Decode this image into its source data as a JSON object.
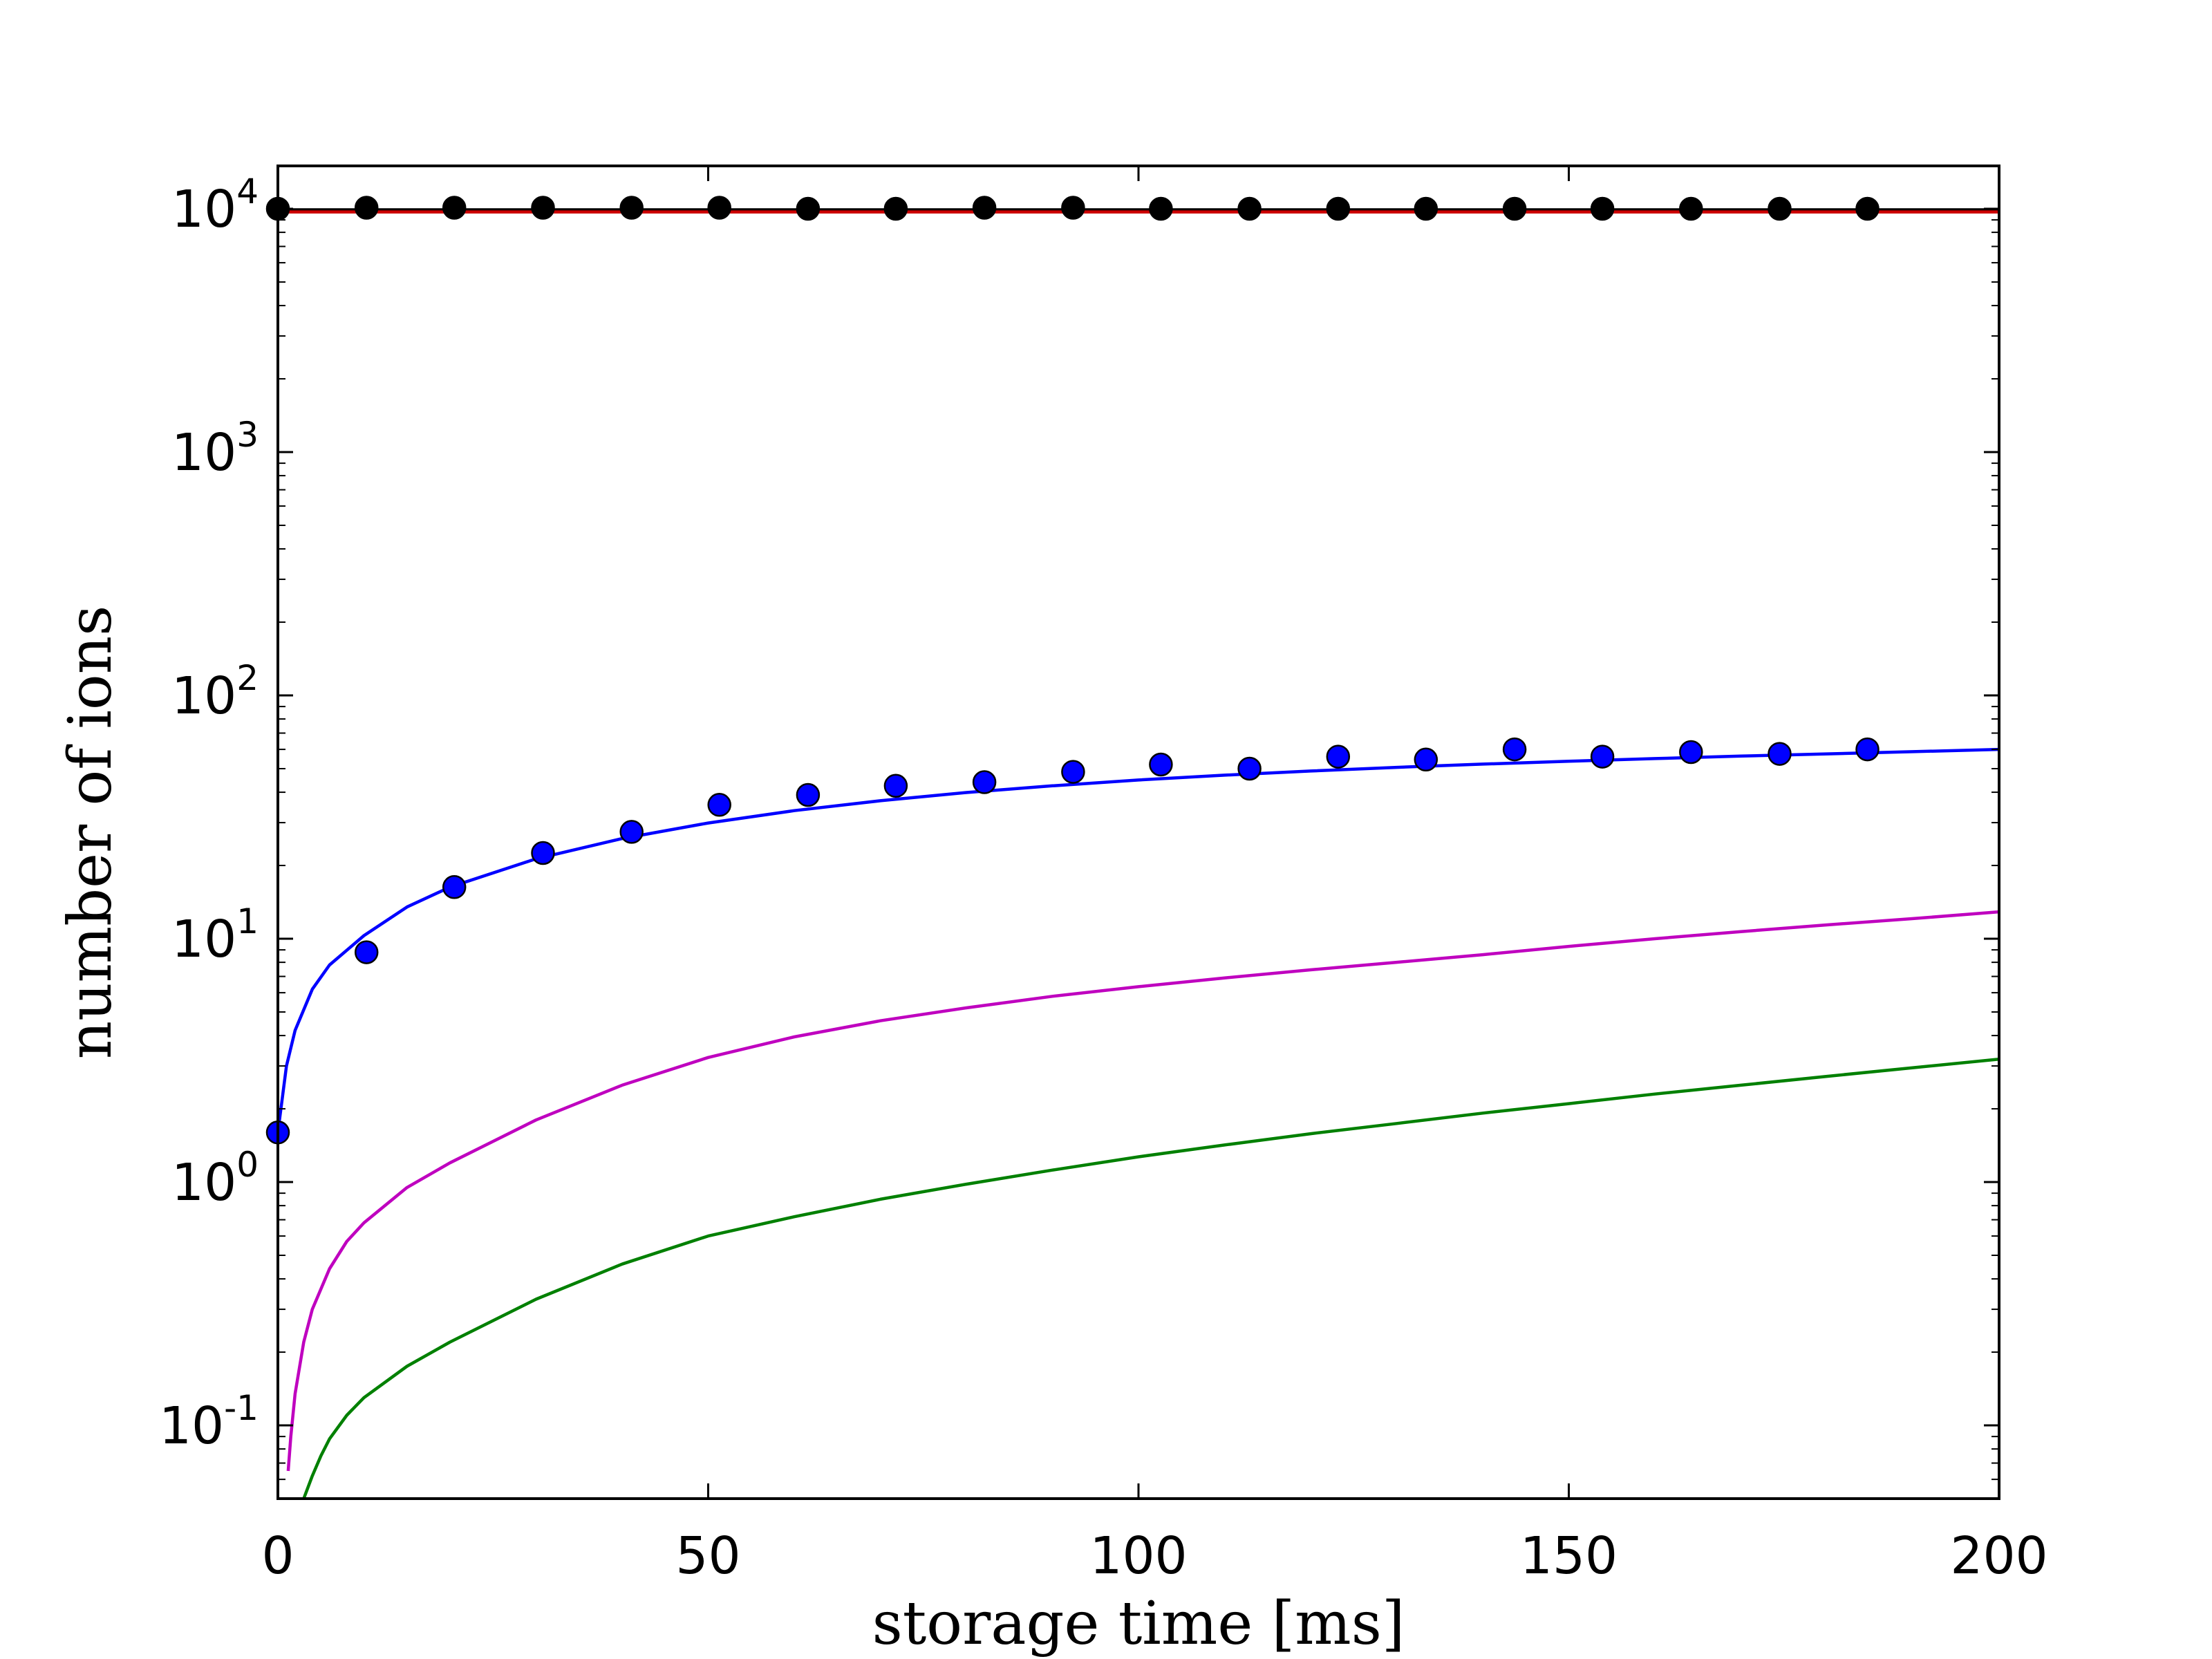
{
  "chart_data": {
    "type": "line",
    "xlabel": "storage time [ms]",
    "ylabel": "number of ions",
    "xlim": [
      0,
      200
    ],
    "ylim": [
      0.05,
      15000
    ],
    "yscale": "log",
    "grid": false,
    "legend": "none",
    "x_ticks": [
      {
        "value": 0,
        "label": "0"
      },
      {
        "value": 50,
        "label": "50"
      },
      {
        "value": 100,
        "label": "100"
      },
      {
        "value": 150,
        "label": "150"
      },
      {
        "value": 200,
        "label": "200"
      }
    ],
    "y_ticks": [
      {
        "value": 0.1,
        "base": "10",
        "exp": "-1"
      },
      {
        "value": 1,
        "base": "10",
        "exp": "0"
      },
      {
        "value": 10,
        "base": "10",
        "exp": "1"
      },
      {
        "value": 100,
        "base": "10",
        "exp": "2"
      },
      {
        "value": 1000,
        "base": "10",
        "exp": "3"
      },
      {
        "value": 10000,
        "base": "10",
        "exp": "4"
      }
    ],
    "scatter_series": [
      {
        "color": "#000000",
        "x": [
          0,
          10.3,
          20.5,
          30.8,
          41.1,
          51.3,
          61.6,
          71.8,
          82.1,
          92.4,
          102.6,
          112.9,
          123.2,
          133.4,
          143.7,
          153.9,
          164.2,
          174.5,
          184.7
        ],
        "y": [
          10000,
          10100,
          10100,
          10100,
          10100,
          10100,
          10000,
          10000,
          10100,
          10100,
          10000,
          10000,
          10000,
          10000,
          10000,
          10000,
          10000,
          10000,
          10000
        ]
      },
      {
        "color": "#0000ff",
        "x": [
          0,
          10.3,
          20.5,
          30.8,
          41.1,
          51.3,
          61.6,
          71.8,
          82.1,
          92.4,
          102.6,
          112.9,
          123.2,
          133.4,
          143.7,
          153.9,
          164.2,
          174.5,
          184.7
        ],
        "y": [
          1.6,
          8.8,
          16.3,
          22.5,
          27.5,
          35.5,
          39,
          42.5,
          44,
          48.5,
          52,
          50,
          56,
          54.5,
          60,
          56,
          58.5,
          57.5,
          60
        ]
      }
    ],
    "line_series": [
      {
        "color": "#000000",
        "x": [
          0,
          200
        ],
        "y": [
          9900,
          9900
        ]
      },
      {
        "color": "#cc0000",
        "x": [
          0,
          200
        ],
        "y": [
          9700,
          9700
        ]
      },
      {
        "color": "#0000ff",
        "x": [
          0,
          1,
          2,
          4,
          6,
          10,
          15,
          20,
          30,
          40,
          50,
          60,
          70,
          80,
          90,
          100,
          110,
          120,
          130,
          140,
          150,
          160,
          170,
          180,
          190,
          200
        ],
        "y": [
          1.6,
          3.0,
          4.2,
          6.2,
          7.8,
          10.3,
          13.5,
          16.3,
          21.3,
          25.8,
          29.9,
          33.6,
          36.9,
          39.9,
          42.5,
          44.9,
          47.0,
          48.9,
          50.6,
          52.2,
          53.6,
          55.0,
          56.3,
          57.5,
          58.7,
          60.0
        ]
      },
      {
        "color": "#bf00bf",
        "x": [
          1.2,
          1.5,
          2,
          3,
          4,
          6,
          8,
          10,
          15,
          20,
          30,
          40,
          50,
          60,
          70,
          80,
          90,
          100,
          110,
          120,
          130,
          140,
          150,
          160,
          170,
          180,
          190,
          200
        ],
        "y": [
          0.065,
          0.09,
          0.135,
          0.22,
          0.3,
          0.44,
          0.57,
          0.68,
          0.95,
          1.2,
          1.8,
          2.5,
          3.25,
          3.95,
          4.6,
          5.2,
          5.8,
          6.35,
          6.9,
          7.45,
          8.0,
          8.6,
          9.3,
          10.0,
          10.7,
          11.4,
          12.1,
          12.9
        ]
      },
      {
        "color": "#008000",
        "x": [
          3,
          4,
          5,
          6,
          8,
          10,
          15,
          20,
          30,
          40,
          50,
          60,
          70,
          80,
          90,
          100,
          110,
          120,
          130,
          140,
          150,
          160,
          170,
          180,
          190,
          200
        ],
        "y": [
          0.05,
          0.062,
          0.075,
          0.088,
          0.11,
          0.13,
          0.175,
          0.22,
          0.33,
          0.46,
          0.6,
          0.72,
          0.85,
          0.98,
          1.12,
          1.27,
          1.42,
          1.58,
          1.74,
          1.92,
          2.1,
          2.3,
          2.5,
          2.72,
          2.95,
          3.2
        ]
      }
    ]
  }
}
